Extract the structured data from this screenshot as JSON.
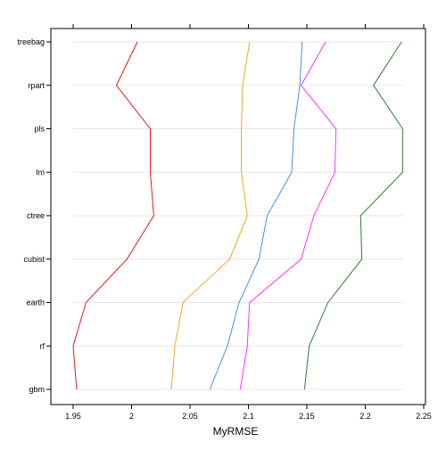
{
  "chart_data": {
    "type": "line",
    "title": "",
    "xlabel": "MyRMSE",
    "ylabel": "",
    "categories": [
      "gbm",
      "rf",
      "earth",
      "cubist",
      "ctree",
      "lm",
      "pls",
      "rpart",
      "treebag"
    ],
    "xlim": [
      1.94,
      2.25
    ],
    "xticks": [
      "1.95",
      "2",
      "2.05",
      "2.1",
      "2.15",
      "2.2",
      "2.25"
    ],
    "grid": "horizontal",
    "legend": "none",
    "series": [
      {
        "color": "#e41a1c",
        "values": [
          1.953,
          1.95,
          1.961,
          1.996,
          2.019,
          2.016,
          2.016,
          1.987,
          2.005
        ]
      },
      {
        "color": "#f5a623",
        "values": [
          2.034,
          2.037,
          2.044,
          2.084,
          2.099,
          2.094,
          2.094,
          2.095,
          2.101
        ]
      },
      {
        "color": "#4a90e2",
        "values": [
          2.067,
          2.082,
          2.092,
          2.109,
          2.116,
          2.137,
          2.139,
          2.144,
          2.146
        ]
      },
      {
        "color": "#ff33ff",
        "values": [
          2.093,
          2.099,
          2.101,
          2.145,
          2.156,
          2.174,
          2.175,
          2.145,
          2.166
        ]
      },
      {
        "color": "#2e7d32",
        "values": [
          2.148,
          2.152,
          2.168,
          2.197,
          2.196,
          2.232,
          2.232,
          2.207,
          2.231
        ]
      }
    ]
  }
}
